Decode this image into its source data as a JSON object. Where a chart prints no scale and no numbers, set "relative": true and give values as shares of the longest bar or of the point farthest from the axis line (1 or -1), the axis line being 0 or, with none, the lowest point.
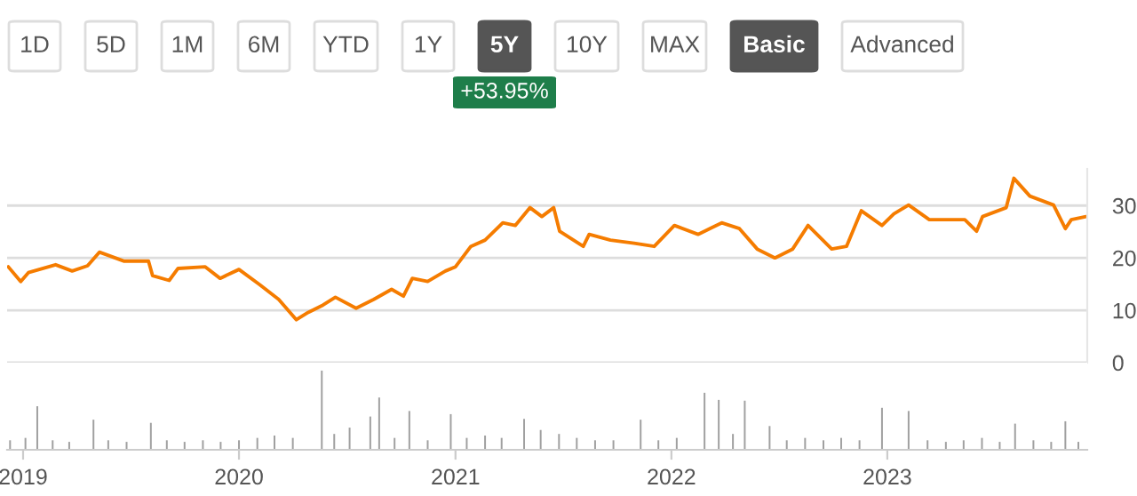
{
  "chart_data": [
    {
      "type": "line",
      "annotations": [
        "1D",
        "5D",
        "1M",
        "6M",
        "YTD",
        "1Y",
        "5Y",
        "10Y",
        "MAX",
        "Basic",
        "Advanced",
        "+53.95%"
      ],
      "x": [
        "2018-12-07",
        "2018-12-28",
        "2019-01-10",
        "2019-02-25",
        "2019-03-25",
        "2019-04-20",
        "2019-05-10",
        "2019-06-20",
        "2019-08-01",
        "2019-08-08",
        "2019-09-05",
        "2019-09-20",
        "2019-11-05",
        "2019-11-30",
        "2020-01-01",
        "2020-02-05",
        "2020-03-08",
        "2020-04-07",
        "2020-04-27",
        "2020-05-22",
        "2020-06-12",
        "2020-07-17",
        "2020-08-16",
        "2020-09-15",
        "2020-10-05",
        "2020-10-20",
        "2020-11-15",
        "2020-12-15",
        "2021-01-01",
        "2021-01-27",
        "2021-02-20",
        "2021-03-22",
        "2021-04-12",
        "2021-05-07",
        "2021-05-27",
        "2021-06-16",
        "2021-06-26",
        "2021-08-05",
        "2021-08-15",
        "2021-09-20",
        "2021-10-30",
        "2021-12-03",
        "2022-01-06",
        "2022-02-15",
        "2022-03-27",
        "2022-04-26",
        "2022-05-26",
        "2022-06-25",
        "2022-07-25",
        "2022-08-20",
        "2022-09-29",
        "2022-10-24",
        "2022-11-18",
        "2022-12-23",
        "2023-01-12",
        "2023-02-06",
        "2023-03-13",
        "2023-05-12",
        "2023-06-01",
        "2023-06-11",
        "2023-07-21",
        "2023-08-03",
        "2023-08-30",
        "2023-10-09",
        "2023-10-29",
        "2023-11-08",
        "2023-12-03"
      ],
      "series": [
        {
          "color": "#f57c00",
          "values": [
            18.3,
            15.5,
            17.2,
            18.7,
            17.5,
            18.5,
            21.1,
            19.4,
            19.4,
            16.6,
            15.7,
            18.0,
            18.3,
            16.1,
            17.8,
            14.9,
            12.1,
            8.2,
            9.6,
            11.0,
            12.5,
            10.4,
            12.1,
            14.0,
            12.7,
            16.1,
            15.5,
            17.5,
            18.3,
            22.2,
            23.4,
            26.7,
            26.2,
            29.6,
            27.9,
            29.6,
            25.1,
            22.2,
            24.5,
            23.4,
            22.8,
            22.2,
            26.2,
            24.5,
            26.7,
            25.6,
            21.7,
            20.0,
            21.7,
            26.2,
            21.7,
            22.2,
            29.0,
            26.2,
            28.4,
            30.1,
            27.3,
            27.3,
            25.1,
            27.9,
            29.6,
            35.2,
            31.8,
            30.1,
            25.6,
            27.3,
            27.9
          ]
        }
      ],
      "xlim": [
        "2018-12-05",
        "2023-12-05"
      ],
      "ylim": [
        0,
        37
      ],
      "yticks": [
        0,
        10,
        20,
        30
      ],
      "grid": "y",
      "tick_labels": "y",
      "line_style": "solid",
      "marker": "none"
    },
    {
      "type": "bar",
      "relative": true,
      "tick_labels": "x",
      "x": [
        "2018-12-10",
        "2019-01-05",
        "2019-01-25",
        "2019-02-20",
        "2019-03-20",
        "2019-04-30",
        "2019-05-25",
        "2019-06-25",
        "2019-08-05",
        "2019-09-01",
        "2019-10-01",
        "2019-11-01",
        "2019-12-01",
        "2020-01-01",
        "2020-02-01",
        "2020-03-01",
        "2020-04-01",
        "2020-05-20",
        "2020-06-10",
        "2020-07-06",
        "2020-08-10",
        "2020-08-25",
        "2020-09-20",
        "2020-10-15",
        "2020-11-15",
        "2020-12-24",
        "2021-01-20",
        "2021-02-20",
        "2021-03-20",
        "2021-04-27",
        "2021-05-25",
        "2021-06-25",
        "2021-07-25",
        "2021-08-25",
        "2021-09-25",
        "2021-11-10",
        "2021-12-10",
        "2022-01-10",
        "2022-02-26",
        "2022-03-22",
        "2022-04-15",
        "2022-05-05",
        "2022-06-16",
        "2022-07-15",
        "2022-08-15",
        "2022-09-15",
        "2022-10-15",
        "2022-11-15",
        "2022-12-23",
        "2023-02-06",
        "2023-03-10",
        "2023-04-10",
        "2023-05-10",
        "2023-06-10",
        "2023-07-10",
        "2023-08-05",
        "2023-09-05",
        "2023-10-05",
        "2023-10-29",
        "2023-11-20"
      ],
      "series": [
        {
          "color": "#a0a0a0",
          "values": [
            0.12,
            0.15,
            0.55,
            0.12,
            0.1,
            0.38,
            0.12,
            0.1,
            0.34,
            0.12,
            0.1,
            0.12,
            0.1,
            0.12,
            0.15,
            0.18,
            0.15,
            1,
            0.2,
            0.28,
            0.42,
            0.66,
            0.15,
            0.49,
            0.12,
            0.45,
            0.15,
            0.18,
            0.15,
            0.39,
            0.25,
            0.2,
            0.15,
            0.12,
            0.12,
            0.38,
            0.12,
            0.15,
            0.72,
            0.63,
            0.2,
            0.62,
            0.3,
            0.12,
            0.15,
            0.12,
            0.15,
            0.12,
            0.53,
            0.49,
            0.12,
            0.1,
            0.12,
            0.15,
            0.1,
            0.33,
            0.12,
            0.1,
            0.36,
            0.1
          ]
        }
      ],
      "xlim": [
        "2018-12-05",
        "2023-12-05"
      ],
      "xticks": [
        {
          "value": "2019-01-01",
          "label": "2019"
        },
        {
          "value": "2020-01-01",
          "label": "2020"
        },
        {
          "value": "2021-01-01",
          "label": "2021"
        },
        {
          "value": "2022-01-01",
          "label": "2022"
        },
        {
          "value": "2023-01-01",
          "label": "2023"
        }
      ]
    }
  ]
}
